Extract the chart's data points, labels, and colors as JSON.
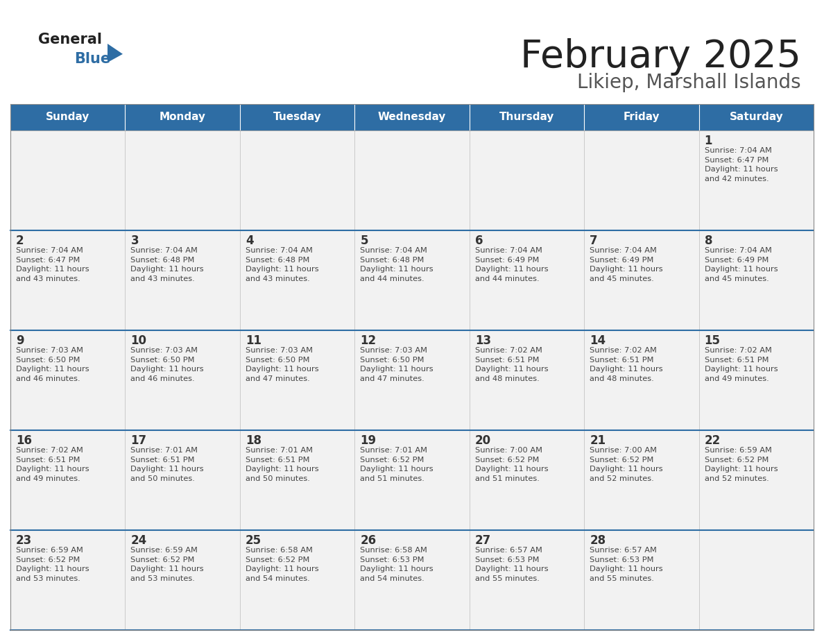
{
  "title": "February 2025",
  "subtitle": "Likiep, Marshall Islands",
  "days_of_week": [
    "Sunday",
    "Monday",
    "Tuesday",
    "Wednesday",
    "Thursday",
    "Friday",
    "Saturday"
  ],
  "header_bg": "#2E6DA4",
  "header_text": "#FFFFFF",
  "cell_bg": "#F2F2F2",
  "border_color": "#CCCCCC",
  "row_sep_color": "#2E6DA4",
  "day_num_color": "#333333",
  "info_text_color": "#444444",
  "title_color": "#222222",
  "subtitle_color": "#555555",
  "logo_general_color": "#222222",
  "logo_blue_color": "#2E6DA4",
  "weeks": [
    [
      {
        "day": null,
        "info": null
      },
      {
        "day": null,
        "info": null
      },
      {
        "day": null,
        "info": null
      },
      {
        "day": null,
        "info": null
      },
      {
        "day": null,
        "info": null
      },
      {
        "day": null,
        "info": null
      },
      {
        "day": 1,
        "info": "Sunrise: 7:04 AM\nSunset: 6:47 PM\nDaylight: 11 hours\nand 42 minutes."
      }
    ],
    [
      {
        "day": 2,
        "info": "Sunrise: 7:04 AM\nSunset: 6:47 PM\nDaylight: 11 hours\nand 43 minutes."
      },
      {
        "day": 3,
        "info": "Sunrise: 7:04 AM\nSunset: 6:48 PM\nDaylight: 11 hours\nand 43 minutes."
      },
      {
        "day": 4,
        "info": "Sunrise: 7:04 AM\nSunset: 6:48 PM\nDaylight: 11 hours\nand 43 minutes."
      },
      {
        "day": 5,
        "info": "Sunrise: 7:04 AM\nSunset: 6:48 PM\nDaylight: 11 hours\nand 44 minutes."
      },
      {
        "day": 6,
        "info": "Sunrise: 7:04 AM\nSunset: 6:49 PM\nDaylight: 11 hours\nand 44 minutes."
      },
      {
        "day": 7,
        "info": "Sunrise: 7:04 AM\nSunset: 6:49 PM\nDaylight: 11 hours\nand 45 minutes."
      },
      {
        "day": 8,
        "info": "Sunrise: 7:04 AM\nSunset: 6:49 PM\nDaylight: 11 hours\nand 45 minutes."
      }
    ],
    [
      {
        "day": 9,
        "info": "Sunrise: 7:03 AM\nSunset: 6:50 PM\nDaylight: 11 hours\nand 46 minutes."
      },
      {
        "day": 10,
        "info": "Sunrise: 7:03 AM\nSunset: 6:50 PM\nDaylight: 11 hours\nand 46 minutes."
      },
      {
        "day": 11,
        "info": "Sunrise: 7:03 AM\nSunset: 6:50 PM\nDaylight: 11 hours\nand 47 minutes."
      },
      {
        "day": 12,
        "info": "Sunrise: 7:03 AM\nSunset: 6:50 PM\nDaylight: 11 hours\nand 47 minutes."
      },
      {
        "day": 13,
        "info": "Sunrise: 7:02 AM\nSunset: 6:51 PM\nDaylight: 11 hours\nand 48 minutes."
      },
      {
        "day": 14,
        "info": "Sunrise: 7:02 AM\nSunset: 6:51 PM\nDaylight: 11 hours\nand 48 minutes."
      },
      {
        "day": 15,
        "info": "Sunrise: 7:02 AM\nSunset: 6:51 PM\nDaylight: 11 hours\nand 49 minutes."
      }
    ],
    [
      {
        "day": 16,
        "info": "Sunrise: 7:02 AM\nSunset: 6:51 PM\nDaylight: 11 hours\nand 49 minutes."
      },
      {
        "day": 17,
        "info": "Sunrise: 7:01 AM\nSunset: 6:51 PM\nDaylight: 11 hours\nand 50 minutes."
      },
      {
        "day": 18,
        "info": "Sunrise: 7:01 AM\nSunset: 6:51 PM\nDaylight: 11 hours\nand 50 minutes."
      },
      {
        "day": 19,
        "info": "Sunrise: 7:01 AM\nSunset: 6:52 PM\nDaylight: 11 hours\nand 51 minutes."
      },
      {
        "day": 20,
        "info": "Sunrise: 7:00 AM\nSunset: 6:52 PM\nDaylight: 11 hours\nand 51 minutes."
      },
      {
        "day": 21,
        "info": "Sunrise: 7:00 AM\nSunset: 6:52 PM\nDaylight: 11 hours\nand 52 minutes."
      },
      {
        "day": 22,
        "info": "Sunrise: 6:59 AM\nSunset: 6:52 PM\nDaylight: 11 hours\nand 52 minutes."
      }
    ],
    [
      {
        "day": 23,
        "info": "Sunrise: 6:59 AM\nSunset: 6:52 PM\nDaylight: 11 hours\nand 53 minutes."
      },
      {
        "day": 24,
        "info": "Sunrise: 6:59 AM\nSunset: 6:52 PM\nDaylight: 11 hours\nand 53 minutes."
      },
      {
        "day": 25,
        "info": "Sunrise: 6:58 AM\nSunset: 6:52 PM\nDaylight: 11 hours\nand 54 minutes."
      },
      {
        "day": 26,
        "info": "Sunrise: 6:58 AM\nSunset: 6:53 PM\nDaylight: 11 hours\nand 54 minutes."
      },
      {
        "day": 27,
        "info": "Sunrise: 6:57 AM\nSunset: 6:53 PM\nDaylight: 11 hours\nand 55 minutes."
      },
      {
        "day": 28,
        "info": "Sunrise: 6:57 AM\nSunset: 6:53 PM\nDaylight: 11 hours\nand 55 minutes."
      },
      {
        "day": null,
        "info": null
      }
    ]
  ]
}
